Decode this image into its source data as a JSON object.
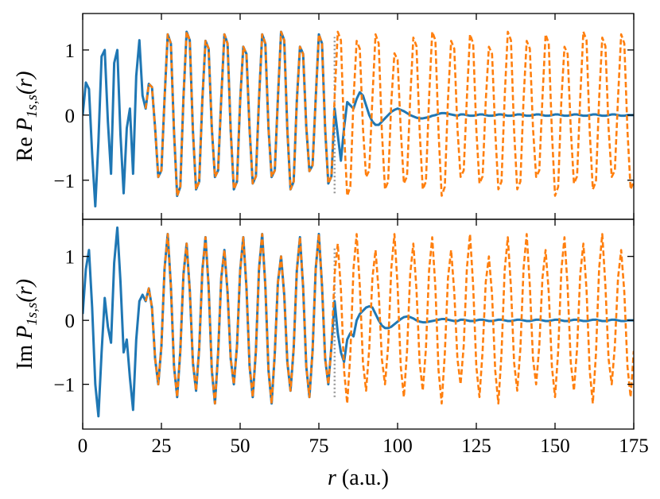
{
  "chart_data": [
    {
      "type": "line",
      "ylabel": {
        "prefix": "Re",
        "symbol": "P",
        "subscript": "1s,s",
        "argument": "(r)"
      },
      "xlim": [
        0,
        175
      ],
      "xticks": [
        0,
        25,
        50,
        75,
        100,
        125,
        150,
        175
      ],
      "xticklabels": false,
      "ylim": [
        -1.6,
        1.56
      ],
      "yticks": [
        {
          "value": -1,
          "label": "−1"
        },
        0,
        1
      ],
      "x": [
        0,
        1,
        2,
        3,
        4,
        5,
        6,
        7,
        8,
        9,
        10,
        11,
        12,
        13,
        14,
        15,
        16,
        17,
        18,
        19,
        20,
        21,
        22,
        23,
        24,
        25,
        26,
        27,
        28,
        29,
        30,
        31,
        32,
        33,
        34,
        35,
        36,
        37,
        38,
        39,
        40,
        41,
        42,
        43,
        44,
        45,
        46,
        47,
        48,
        49,
        50,
        51,
        52,
        53,
        54,
        55,
        56,
        57,
        58,
        59,
        60,
        61,
        62,
        63,
        64,
        65,
        66,
        67,
        68,
        69,
        70,
        71,
        72,
        73,
        74,
        75,
        76,
        77,
        78,
        79,
        80,
        81,
        82,
        83,
        84,
        85,
        86,
        87,
        88,
        89,
        90,
        91,
        92,
        93,
        94,
        95,
        96,
        97,
        98,
        99,
        100,
        101,
        102,
        103,
        104,
        105,
        106,
        107,
        108,
        109,
        110,
        111,
        112,
        113,
        114,
        115,
        116,
        117,
        118,
        119,
        120,
        121,
        122,
        123,
        124,
        125,
        126,
        127,
        128,
        129,
        130,
        131,
        132,
        133,
        134,
        135,
        136,
        137,
        138,
        139,
        140,
        141,
        142,
        143,
        144,
        145,
        146,
        147,
        148,
        149,
        150,
        151,
        152,
        153,
        154,
        155,
        156,
        157,
        158,
        159,
        160,
        161,
        162,
        163,
        164,
        165,
        166,
        167,
        168,
        169,
        170,
        171,
        172,
        173,
        174,
        175
      ],
      "vline": {
        "x": 80,
        "ymin": -1.2,
        "ymax": 1.2,
        "color": "#999999"
      },
      "series": [
        {
          "color": "#1f77b4",
          "dashed": false,
          "values": [
            0.0,
            0.5,
            0.4,
            -0.6,
            -1.4,
            -0.4,
            0.9,
            1.0,
            -0.1,
            -0.9,
            0.8,
            1.0,
            -0.3,
            -1.2,
            -0.2,
            0.1,
            -0.9,
            0.6,
            1.15,
            0.3,
            0.1,
            0.48,
            0.43,
            -0.2,
            -0.95,
            -0.85,
            0.26,
            1.24,
            1.1,
            -0.26,
            -1.24,
            -1.1,
            0.27,
            1.28,
            1.15,
            -0.24,
            -1.14,
            -1.02,
            0.24,
            1.14,
            1.02,
            -0.2,
            -0.95,
            -0.85,
            0.26,
            1.24,
            1.1,
            -0.24,
            -1.14,
            -1.02,
            0.22,
            1.05,
            0.94,
            -0.22,
            -1.05,
            -0.94,
            0.26,
            1.24,
            1.1,
            -0.2,
            -0.95,
            -0.85,
            0.27,
            1.28,
            1.15,
            -0.24,
            -1.14,
            -1.02,
            0.22,
            1.05,
            0.94,
            -0.18,
            -0.86,
            -0.77,
            0.26,
            1.24,
            1.1,
            -0.22,
            -1.05,
            -0.94,
            0.1,
            -0.3,
            -0.7,
            -0.2,
            0.2,
            0.15,
            0.1,
            0.25,
            0.35,
            0.3,
            0.15,
            0.0,
            -0.1,
            -0.15,
            -0.15,
            -0.1,
            -0.05,
            0.0,
            0.05,
            0.08,
            0.1,
            0.08,
            0.06,
            0.03,
            0.0,
            -0.02,
            -0.04,
            -0.05,
            -0.05,
            -0.04,
            -0.03,
            -0.01,
            0.0,
            0.02,
            0.03,
            0.03,
            0.02,
            0.01,
            0.0,
            -0.01,
            0.01,
            0.01,
            0,
            -0.01,
            -0.01,
            0,
            0.01,
            0.01,
            0,
            -0.01,
            -0.01,
            0,
            0.01,
            0.01,
            0,
            -0.01,
            -0.01,
            0,
            0.01,
            0.01,
            0,
            -0.01,
            -0.01,
            0,
            0.01,
            0.01,
            0,
            -0.01,
            -0.01,
            0,
            0.01,
            0.01,
            0,
            -0.01,
            -0.01,
            0,
            0.01,
            0.01,
            0,
            -0.01,
            -0.01,
            0,
            0.01,
            0.01,
            0,
            -0.01,
            -0.01,
            0,
            0.01,
            0.01,
            0,
            -0.01,
            -0.01,
            0,
            0,
            0
          ]
        },
        {
          "color": "#ff7f0e",
          "dashed": true,
          "values": [
            null,
            null,
            null,
            null,
            null,
            null,
            null,
            null,
            null,
            null,
            null,
            null,
            null,
            null,
            null,
            null,
            null,
            null,
            null,
            null,
            0.1,
            0.48,
            0.43,
            -0.2,
            -0.95,
            -0.85,
            0.26,
            1.24,
            1.1,
            -0.26,
            -1.24,
            -1.1,
            0.27,
            1.28,
            1.15,
            -0.24,
            -1.14,
            -1.02,
            0.24,
            1.14,
            1.02,
            -0.2,
            -0.95,
            -0.85,
            0.26,
            1.24,
            1.1,
            -0.24,
            -1.14,
            -1.02,
            0.22,
            1.05,
            0.94,
            -0.22,
            -1.05,
            -0.94,
            0.26,
            1.24,
            1.1,
            -0.2,
            -0.95,
            -0.85,
            0.27,
            1.28,
            1.15,
            -0.24,
            -1.14,
            -1.02,
            0.22,
            1.05,
            0.94,
            -0.18,
            -0.86,
            -0.77,
            0.26,
            1.24,
            1.1,
            -0.22,
            -1.05,
            -0.94,
            0.27,
            1.28,
            1.15,
            -0.26,
            -1.24,
            -1.1,
            0.24,
            1.14,
            1.02,
            -0.2,
            -0.95,
            -0.85,
            0.26,
            1.24,
            1.1,
            -0.24,
            -1.14,
            -1.02,
            0.2,
            0.95,
            0.85,
            -0.22,
            -1.05,
            -0.94,
            0.25,
            1.19,
            1.06,
            -0.24,
            -1.14,
            -1.02,
            0.27,
            1.28,
            1.15,
            -0.26,
            -1.24,
            -1.1,
            0.24,
            1.14,
            1.02,
            -0.2,
            -0.95,
            -0.85,
            0.26,
            1.24,
            1.1,
            -0.22,
            -1.05,
            -0.94,
            0.22,
            1.05,
            0.94,
            -0.24,
            -1.14,
            -1.02,
            0.27,
            1.28,
            1.15,
            -0.24,
            -1.14,
            -1.02,
            0.24,
            1.14,
            1.02,
            -0.2,
            -0.95,
            -0.85,
            0.26,
            1.24,
            1.1,
            -0.26,
            -1.24,
            -1.1,
            0.22,
            1.05,
            0.94,
            -0.22,
            -1.05,
            -0.94,
            0.27,
            1.28,
            1.15,
            -0.24,
            -1.14,
            -1.02,
            0.25,
            1.19,
            1.06,
            -0.2,
            -0.95,
            -0.85,
            0.26,
            1.24,
            1.1,
            -0.24,
            -1.14,
            -1.02
          ]
        }
      ]
    },
    {
      "type": "line",
      "ylabel": {
        "prefix": "Im",
        "symbol": "P",
        "subscript": "1s,s",
        "argument": "(r)"
      },
      "xlabel": {
        "symbol": "r",
        "unit": "(a.u.)"
      },
      "xlim": [
        0,
        175
      ],
      "xticks": [
        0,
        25,
        50,
        75,
        100,
        125,
        150,
        175
      ],
      "xticklabels": true,
      "ylim": [
        -1.7,
        1.58
      ],
      "yticks": [
        {
          "value": -1,
          "label": "−1"
        },
        0,
        1
      ],
      "x": [
        0,
        1,
        2,
        3,
        4,
        5,
        6,
        7,
        8,
        9,
        10,
        11,
        12,
        13,
        14,
        15,
        16,
        17,
        18,
        19,
        20,
        21,
        22,
        23,
        24,
        25,
        26,
        27,
        28,
        29,
        30,
        31,
        32,
        33,
        34,
        35,
        36,
        37,
        38,
        39,
        40,
        41,
        42,
        43,
        44,
        45,
        46,
        47,
        48,
        49,
        50,
        51,
        52,
        53,
        54,
        55,
        56,
        57,
        58,
        59,
        60,
        61,
        62,
        63,
        64,
        65,
        66,
        67,
        68,
        69,
        70,
        71,
        72,
        73,
        74,
        75,
        76,
        77,
        78,
        79,
        80,
        81,
        82,
        83,
        84,
        85,
        86,
        87,
        88,
        89,
        90,
        91,
        92,
        93,
        94,
        95,
        96,
        97,
        98,
        99,
        100,
        101,
        102,
        103,
        104,
        105,
        106,
        107,
        108,
        109,
        110,
        111,
        112,
        113,
        114,
        115,
        116,
        117,
        118,
        119,
        120,
        121,
        122,
        123,
        124,
        125,
        126,
        127,
        128,
        129,
        130,
        131,
        132,
        133,
        134,
        135,
        136,
        137,
        138,
        139,
        140,
        141,
        142,
        143,
        144,
        145,
        146,
        147,
        148,
        149,
        150,
        151,
        152,
        153,
        154,
        155,
        156,
        157,
        158,
        159,
        160,
        161,
        162,
        163,
        164,
        165,
        166,
        167,
        168,
        169,
        170,
        171,
        172,
        173,
        174,
        175
      ],
      "vline": {
        "x": 80,
        "ymin": -1.2,
        "ymax": 1.15,
        "color": "#999999"
      },
      "series": [
        {
          "color": "#1f77b4",
          "dashed": false,
          "values": [
            0.1,
            0.8,
            1.1,
            0.2,
            -1.0,
            -1.5,
            -0.5,
            0.35,
            -0.1,
            -0.35,
            0.9,
            1.45,
            0.6,
            -0.5,
            -0.3,
            -0.9,
            -1.4,
            -0.3,
            0.3,
            0.4,
            0.3,
            0.5,
            0.2,
            -0.6,
            -1.0,
            -0.4,
            0.81,
            1.35,
            0.54,
            -0.72,
            -1.2,
            -0.48,
            0.72,
            1.2,
            0.48,
            -0.66,
            -1.1,
            -0.44,
            0.78,
            1.3,
            0.52,
            -0.78,
            -1.3,
            -0.52,
            0.66,
            1.1,
            0.44,
            -0.6,
            -1.0,
            -0.4,
            0.78,
            1.3,
            0.52,
            -0.72,
            -1.2,
            -0.48,
            0.81,
            1.35,
            0.54,
            -0.78,
            -1.3,
            -0.52,
            0.6,
            1.0,
            0.4,
            -0.66,
            -1.1,
            -0.44,
            0.78,
            1.3,
            0.52,
            -0.72,
            -1.2,
            -0.48,
            0.81,
            1.35,
            0.54,
            -0.6,
            -1.0,
            -0.4,
            0.3,
            -0.2,
            -0.5,
            -0.65,
            -0.3,
            -0.2,
            -0.25,
            0.0,
            0.1,
            0.15,
            0.2,
            0.22,
            0.2,
            0.1,
            0.0,
            -0.08,
            -0.12,
            -0.12,
            -0.1,
            -0.06,
            -0.02,
            0.02,
            0.05,
            0.06,
            0.05,
            0.03,
            0.0,
            -0.02,
            -0.03,
            -0.03,
            -0.02,
            -0.01,
            0.0,
            0.01,
            0.02,
            0.02,
            0.01,
            0.0,
            -0.01,
            -0.01,
            0.01,
            0.01,
            0,
            -0.01,
            -0.01,
            0,
            0.01,
            0.01,
            0,
            -0.01,
            -0.01,
            0,
            0.01,
            0.01,
            0,
            -0.01,
            -0.01,
            0,
            0.01,
            0.01,
            0,
            -0.01,
            -0.01,
            0,
            0.01,
            0.01,
            0,
            -0.01,
            -0.01,
            0,
            0.01,
            0.01,
            0,
            -0.01,
            -0.01,
            0,
            0.01,
            0.01,
            0,
            -0.01,
            -0.01,
            0,
            0.01,
            0.01,
            0,
            -0.01,
            -0.01,
            0,
            0.01,
            0.01,
            0,
            -0.01,
            -0.01,
            0,
            0,
            0
          ]
        },
        {
          "color": "#ff7f0e",
          "dashed": true,
          "values": [
            null,
            null,
            null,
            null,
            null,
            null,
            null,
            null,
            null,
            null,
            null,
            null,
            null,
            null,
            null,
            null,
            null,
            null,
            null,
            null,
            0.3,
            0.5,
            0.2,
            -0.6,
            -1.0,
            -0.4,
            0.81,
            1.35,
            0.54,
            -0.72,
            -1.2,
            -0.48,
            0.72,
            1.2,
            0.48,
            -0.66,
            -1.1,
            -0.44,
            0.78,
            1.3,
            0.52,
            -0.78,
            -1.3,
            -0.52,
            0.66,
            1.1,
            0.44,
            -0.6,
            -1.0,
            -0.4,
            0.78,
            1.3,
            0.52,
            -0.72,
            -1.2,
            -0.48,
            0.81,
            1.35,
            0.54,
            -0.78,
            -1.3,
            -0.52,
            0.6,
            1.0,
            0.4,
            -0.66,
            -1.1,
            -0.44,
            0.78,
            1.3,
            0.52,
            -0.72,
            -1.2,
            -0.48,
            0.81,
            1.35,
            0.54,
            -0.6,
            -1.0,
            -0.4,
            0.72,
            1.2,
            0.48,
            -0.78,
            -1.3,
            -0.52,
            0.81,
            1.35,
            0.54,
            -0.66,
            -1.1,
            -0.44,
            0.66,
            1.1,
            0.44,
            -0.6,
            -1.0,
            -0.4,
            0.81,
            1.35,
            0.54,
            -0.72,
            -1.2,
            -0.48,
            0.72,
            1.2,
            0.48,
            -0.66,
            -1.1,
            -0.44,
            0.78,
            1.3,
            0.52,
            -0.78,
            -1.3,
            -0.52,
            0.66,
            1.1,
            0.44,
            -0.6,
            -1.0,
            -0.4,
            0.81,
            1.35,
            0.54,
            -0.72,
            -1.2,
            -0.48,
            0.6,
            1.0,
            0.4,
            -0.78,
            -1.3,
            -0.52,
            0.78,
            1.3,
            0.52,
            -0.66,
            -1.1,
            -0.44,
            0.81,
            1.35,
            0.54,
            -0.6,
            -1.0,
            -0.4,
            0.66,
            1.1,
            0.44,
            -0.72,
            -1.2,
            -0.48,
            0.78,
            1.3,
            0.52,
            -0.66,
            -1.1,
            -0.44,
            0.72,
            1.2,
            0.48,
            -0.78,
            -1.3,
            -0.52,
            0.81,
            1.35,
            0.54,
            -0.6,
            -1.0,
            -0.4,
            0.66,
            1.1,
            0.44,
            -0.72,
            -1.2,
            -0.48
          ]
        }
      ]
    }
  ]
}
